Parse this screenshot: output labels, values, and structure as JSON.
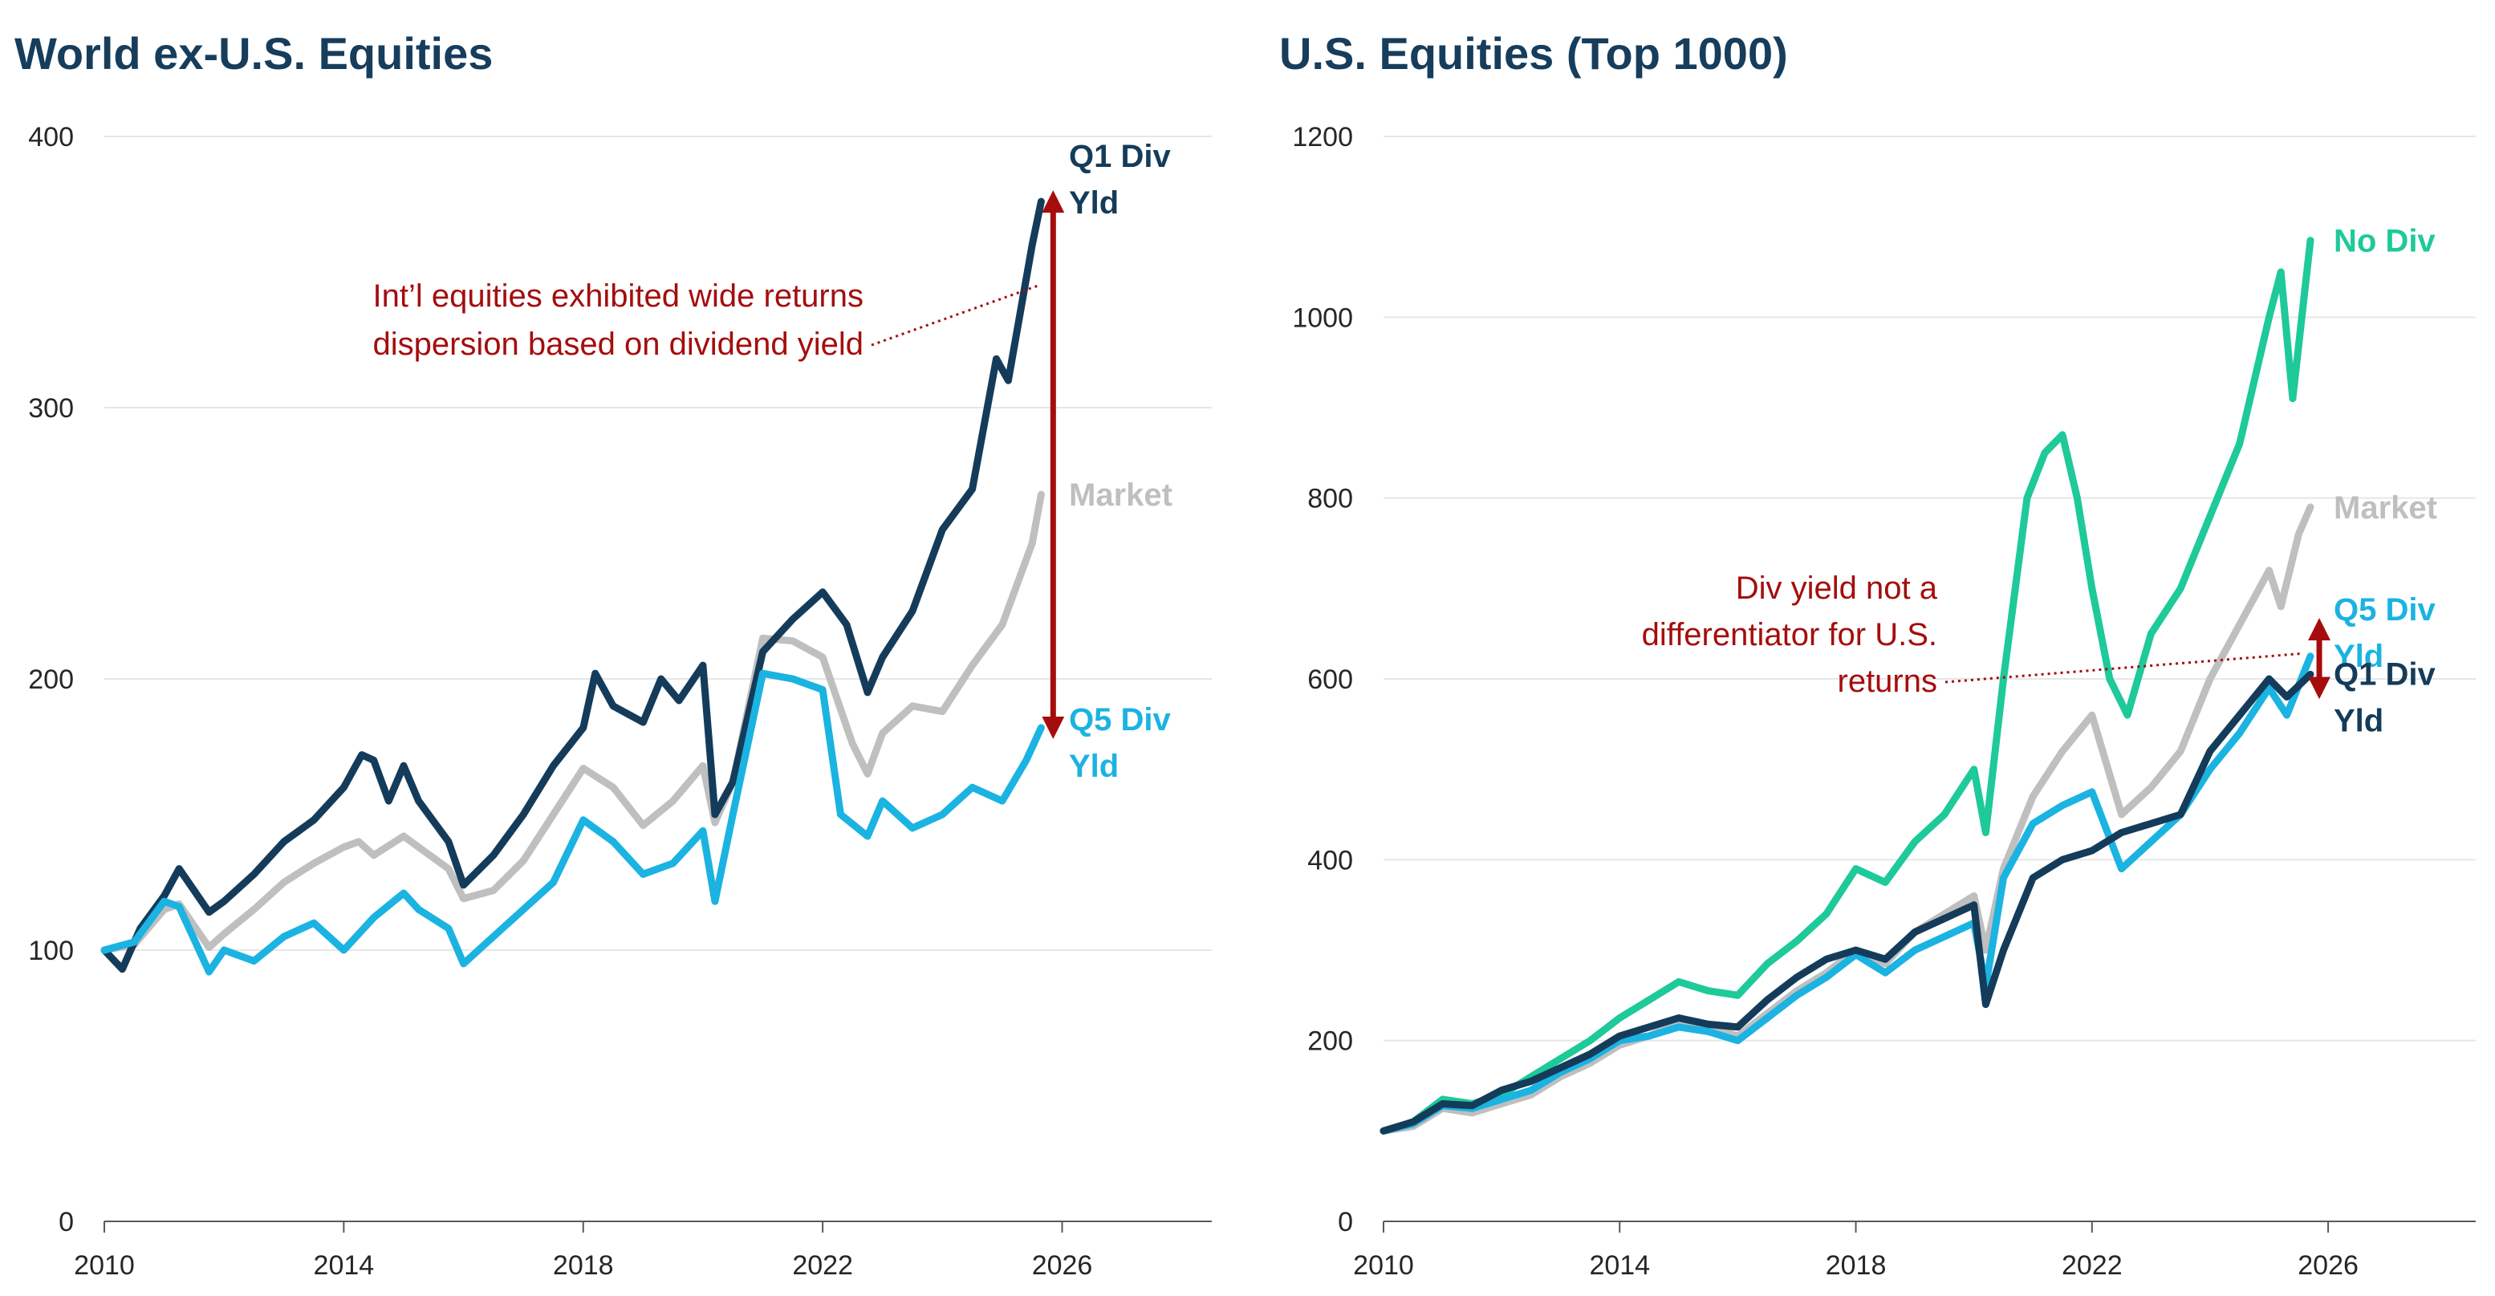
{
  "colors": {
    "title": "#173d5c",
    "q1": "#143c5a",
    "q5": "#1bb3e1",
    "market": "#bfbfbf",
    "nodiv": "#1ec99a",
    "annotation": "#a50d0d",
    "axis_text": "#262626",
    "grid": "#e6e6e6",
    "axis_line": "#595959"
  },
  "chart_data": [
    {
      "id": "world",
      "type": "line",
      "title": "World ex-U.S. Equities",
      "xlabel": "",
      "ylabel": "",
      "xlim": [
        2010,
        2028.5
      ],
      "ylim": [
        0,
        400
      ],
      "x_ticks": [
        "2010",
        "2014",
        "2018",
        "2022",
        "2026"
      ],
      "y_ticks": [
        "0",
        "100",
        "200",
        "300",
        "400"
      ],
      "grid": true,
      "series": [
        {
          "key": "market",
          "name": "Market",
          "label_lines": [
            "Market"
          ],
          "x": [
            2010.0,
            2010.5,
            2011.0,
            2011.25,
            2011.75,
            2012.0,
            2012.5,
            2013.0,
            2013.5,
            2014.0,
            2014.25,
            2014.5,
            2015.0,
            2015.25,
            2015.75,
            2016.0,
            2016.5,
            2017.0,
            2017.5,
            2018.0,
            2018.5,
            2019.0,
            2019.5,
            2020.0,
            2020.2,
            2020.5,
            2021.0,
            2021.5,
            2022.0,
            2022.5,
            2022.75,
            2023.0,
            2023.5,
            2024.0,
            2024.5,
            2025.0,
            2025.5,
            2025.65
          ],
          "values": [
            100,
            102,
            115,
            117,
            101,
            106,
            115,
            125,
            132,
            138,
            140,
            135,
            142,
            138,
            130,
            119,
            122,
            133,
            150,
            167,
            160,
            146,
            155,
            168,
            147,
            162,
            215,
            214,
            208,
            176,
            165,
            180,
            190,
            188,
            205,
            220,
            250,
            268
          ]
        },
        {
          "key": "q1",
          "name": "Q1 Div Yld",
          "label_lines": [
            "Q1 Div",
            "Yld"
          ],
          "x": [
            2010.0,
            2010.3,
            2010.6,
            2011.0,
            2011.25,
            2011.75,
            2012.0,
            2012.5,
            2013.0,
            2013.5,
            2014.0,
            2014.3,
            2014.5,
            2014.75,
            2015.0,
            2015.25,
            2015.75,
            2016.0,
            2016.5,
            2017.0,
            2017.5,
            2018.0,
            2018.2,
            2018.5,
            2019.0,
            2019.3,
            2019.6,
            2020.0,
            2020.2,
            2020.5,
            2021.0,
            2021.5,
            2022.0,
            2022.4,
            2022.75,
            2023.0,
            2023.5,
            2024.0,
            2024.5,
            2024.9,
            2025.1,
            2025.3,
            2025.5,
            2025.65
          ],
          "values": [
            100,
            93,
            108,
            120,
            130,
            114,
            118,
            128,
            140,
            148,
            160,
            172,
            170,
            155,
            168,
            155,
            140,
            124,
            135,
            150,
            168,
            182,
            202,
            190,
            184,
            200,
            192,
            205,
            150,
            162,
            210,
            222,
            232,
            220,
            195,
            208,
            225,
            255,
            270,
            318,
            310,
            335,
            360,
            376
          ]
        },
        {
          "key": "q5",
          "name": "Q5 Div Yld",
          "label_lines": [
            "Q5 Div",
            "Yld"
          ],
          "x": [
            2010.0,
            2010.5,
            2011.0,
            2011.25,
            2011.75,
            2012.0,
            2012.5,
            2013.0,
            2013.5,
            2014.0,
            2014.5,
            2015.0,
            2015.25,
            2015.75,
            2016.0,
            2016.5,
            2017.0,
            2017.5,
            2018.0,
            2018.5,
            2019.0,
            2019.5,
            2020.0,
            2020.2,
            2020.5,
            2021.0,
            2021.5,
            2022.0,
            2022.3,
            2022.75,
            2023.0,
            2023.5,
            2024.0,
            2024.5,
            2025.0,
            2025.4,
            2025.65
          ],
          "values": [
            100,
            103,
            118,
            116,
            92,
            100,
            96,
            105,
            110,
            100,
            112,
            121,
            115,
            108,
            95,
            105,
            115,
            125,
            148,
            140,
            128,
            132,
            144,
            118,
            150,
            202,
            200,
            196,
            150,
            142,
            155,
            145,
            150,
            160,
            155,
            170,
            182
          ]
        }
      ],
      "annotation": {
        "lines": [
          "Int’l equities exhibited wide returns",
          "dispersion based on dividend yield"
        ],
        "arrow_x": 2025.85,
        "arrow_from": 182,
        "arrow_to": 376,
        "leader_end_x": 2025.6,
        "leader_end_y": 345
      }
    },
    {
      "id": "us",
      "type": "line",
      "title": "U.S. Equities (Top 1000)",
      "xlabel": "",
      "ylabel": "",
      "xlim": [
        2010,
        2028.5
      ],
      "ylim": [
        0,
        1200
      ],
      "x_ticks": [
        "2010",
        "2014",
        "2018",
        "2022",
        "2026"
      ],
      "y_ticks": [
        "0",
        "200",
        "400",
        "600",
        "800",
        "1000",
        "1200"
      ],
      "grid": true,
      "series": [
        {
          "key": "nodiv",
          "name": "No Div",
          "label_lines": [
            "No Div"
          ],
          "x": [
            2010.0,
            2010.5,
            2011.0,
            2011.5,
            2012.0,
            2012.5,
            2013.0,
            2013.5,
            2014.0,
            2014.5,
            2015.0,
            2015.5,
            2016.0,
            2016.5,
            2017.0,
            2017.5,
            2018.0,
            2018.5,
            2019.0,
            2019.5,
            2020.0,
            2020.2,
            2020.5,
            2020.9,
            2021.2,
            2021.5,
            2021.75,
            2022.0,
            2022.3,
            2022.6,
            2023.0,
            2023.5,
            2024.0,
            2024.5,
            2025.0,
            2025.2,
            2025.4,
            2025.7
          ],
          "values": [
            100,
            110,
            135,
            130,
            140,
            160,
            180,
            200,
            225,
            245,
            265,
            255,
            250,
            285,
            310,
            340,
            390,
            375,
            420,
            450,
            500,
            430,
            600,
            800,
            850,
            870,
            800,
            700,
            600,
            560,
            650,
            700,
            780,
            860,
            1000,
            1050,
            910,
            1085
          ]
        },
        {
          "key": "market",
          "name": "Market",
          "label_lines": [
            "Market"
          ],
          "x": [
            2010.0,
            2010.5,
            2011.0,
            2011.5,
            2012.0,
            2012.5,
            2013.0,
            2013.5,
            2014.0,
            2014.5,
            2015.0,
            2015.5,
            2016.0,
            2016.5,
            2017.0,
            2017.5,
            2018.0,
            2018.5,
            2019.0,
            2019.5,
            2020.0,
            2020.2,
            2020.5,
            2021.0,
            2021.5,
            2022.0,
            2022.5,
            2023.0,
            2023.5,
            2024.0,
            2024.5,
            2025.0,
            2025.2,
            2025.5,
            2025.7
          ],
          "values": [
            100,
            105,
            125,
            120,
            130,
            140,
            160,
            175,
            195,
            205,
            220,
            215,
            205,
            230,
            255,
            275,
            300,
            285,
            320,
            340,
            360,
            300,
            390,
            470,
            520,
            560,
            450,
            480,
            520,
            600,
            660,
            720,
            680,
            760,
            790
          ]
        },
        {
          "key": "q5",
          "name": "Q5 Div Yld",
          "label_lines": [
            "Q5 Div",
            "Yld"
          ],
          "x": [
            2010.0,
            2010.5,
            2011.0,
            2011.5,
            2012.0,
            2012.5,
            2013.0,
            2013.5,
            2014.0,
            2014.5,
            2015.0,
            2015.5,
            2016.0,
            2016.5,
            2017.0,
            2017.5,
            2018.0,
            2018.5,
            2019.0,
            2019.5,
            2020.0,
            2020.2,
            2020.5,
            2021.0,
            2021.5,
            2022.0,
            2022.5,
            2023.0,
            2023.5,
            2024.0,
            2024.5,
            2025.0,
            2025.3,
            2025.7
          ],
          "values": [
            100,
            108,
            128,
            125,
            135,
            145,
            165,
            180,
            200,
            205,
            215,
            210,
            200,
            225,
            250,
            270,
            295,
            275,
            300,
            315,
            330,
            260,
            380,
            440,
            460,
            475,
            390,
            420,
            450,
            500,
            540,
            590,
            560,
            625
          ]
        },
        {
          "key": "q1",
          "name": "Q1 Div Yld",
          "label_lines": [
            "Q1 Div",
            "Yld"
          ],
          "x": [
            2010.0,
            2010.5,
            2011.0,
            2011.5,
            2012.0,
            2012.5,
            2013.0,
            2013.5,
            2014.0,
            2014.5,
            2015.0,
            2015.5,
            2016.0,
            2016.5,
            2017.0,
            2017.5,
            2018.0,
            2018.5,
            2019.0,
            2019.5,
            2020.0,
            2020.2,
            2020.5,
            2021.0,
            2021.5,
            2022.0,
            2022.5,
            2023.0,
            2023.5,
            2024.0,
            2024.5,
            2025.0,
            2025.3,
            2025.7
          ],
          "values": [
            100,
            110,
            130,
            128,
            145,
            155,
            170,
            185,
            205,
            215,
            225,
            218,
            215,
            245,
            270,
            290,
            300,
            290,
            320,
            335,
            350,
            240,
            300,
            380,
            400,
            410,
            430,
            440,
            450,
            520,
            560,
            600,
            580,
            605
          ]
        }
      ],
      "annotation": {
        "lines": [
          "Div yield not a",
          "differentiator for U.S.",
          "returns"
        ],
        "arrow_x": 2025.85,
        "arrow_from": 590,
        "arrow_to": 655,
        "leader_end_x": 2025.55,
        "leader_end_y": 628
      }
    }
  ]
}
